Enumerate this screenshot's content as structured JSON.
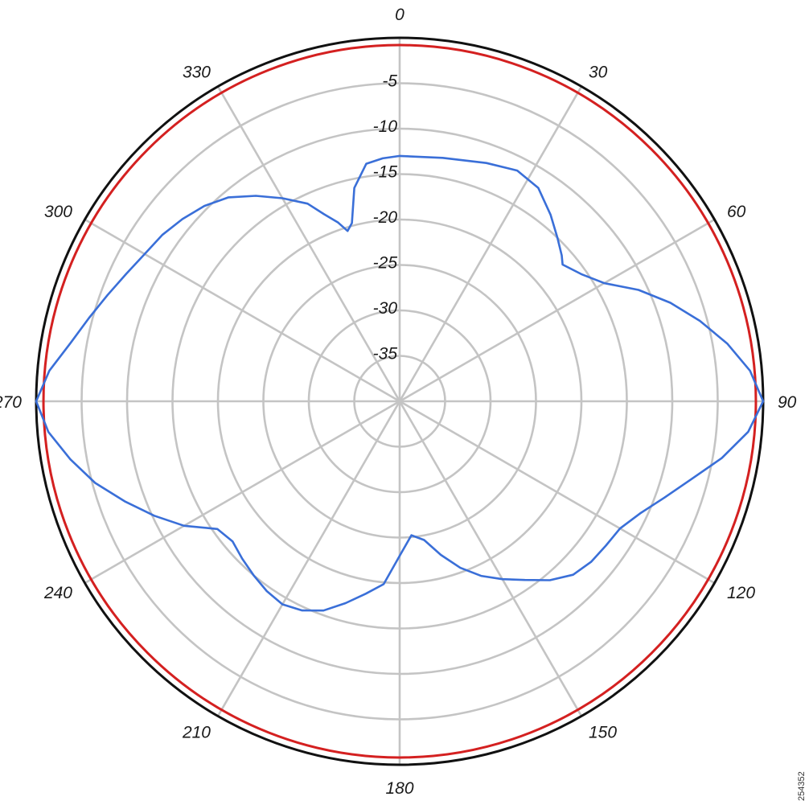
{
  "figure_id": "254352",
  "chart_data": {
    "type": "polar-line",
    "title": "",
    "angle_direction": "clockwise",
    "zero_at": "top",
    "angle_step": 30,
    "angle_labels": [
      "0",
      "30",
      "60",
      "90",
      "120",
      "150",
      "180",
      "210",
      "240",
      "270",
      "300",
      "330"
    ],
    "radial_range": [
      -40,
      0
    ],
    "radial_step": 5,
    "radial_labels": [
      "-5",
      "-10",
      "-15",
      "-20",
      "-25",
      "-30",
      "-35"
    ],
    "grid": true,
    "colors": {
      "outer_ring": "#111111",
      "grid": "#c4c4c4",
      "reference_series": "#d42020",
      "pattern_series": "#3a6fd8"
    },
    "series": [
      {
        "kind": "reference-circle",
        "level_db": -0.8
      },
      {
        "kind": "pattern",
        "points": [
          [
            0,
            -13.0
          ],
          [
            10,
            -12.8
          ],
          [
            20,
            -12.1
          ],
          [
            27,
            -11.5
          ],
          [
            33,
            -12.0
          ],
          [
            39,
            -13.6
          ],
          [
            44,
            -15.0
          ],
          [
            48,
            -16.0
          ],
          [
            50,
            -16.6
          ],
          [
            55,
            -15.6
          ],
          [
            60,
            -14.0
          ],
          [
            65,
            -11.0
          ],
          [
            70,
            -8.3
          ],
          [
            75,
            -5.8
          ],
          [
            80,
            -3.4
          ],
          [
            85,
            -1.3
          ],
          [
            90,
            0
          ],
          [
            95,
            -1.5
          ],
          [
            100,
            -4.0
          ],
          [
            105,
            -6.8
          ],
          [
            110,
            -9.0
          ],
          [
            115,
            -10.8
          ],
          [
            120,
            -12.0
          ],
          [
            125,
            -12.3
          ],
          [
            130,
            -12.5
          ],
          [
            135,
            -13.0
          ],
          [
            140,
            -14.3
          ],
          [
            145,
            -16.0
          ],
          [
            150,
            -17.4
          ],
          [
            155,
            -18.8
          ],
          [
            160,
            -20.5
          ],
          [
            165,
            -22.5
          ],
          [
            170,
            -24.5
          ],
          [
            175,
            -25.2
          ],
          [
            180,
            -23.0
          ],
          [
            185,
            -19.8
          ],
          [
            190,
            -18.5
          ],
          [
            195,
            -17.0
          ],
          [
            200,
            -15.5
          ],
          [
            205,
            -14.6
          ],
          [
            210,
            -14.2
          ],
          [
            215,
            -14.5
          ],
          [
            220,
            -15.0
          ],
          [
            225,
            -15.5
          ],
          [
            230,
            -16.0
          ],
          [
            235,
            -15.5
          ],
          [
            240,
            -12.6
          ],
          [
            245,
            -10.2
          ],
          [
            250,
            -7.8
          ],
          [
            255,
            -5.3
          ],
          [
            260,
            -3.2
          ],
          [
            265,
            -1.2
          ],
          [
            270,
            0
          ],
          [
            275,
            -1.3
          ],
          [
            280,
            -3.2
          ],
          [
            285,
            -4.6
          ],
          [
            290,
            -5.8
          ],
          [
            295,
            -6.8
          ],
          [
            300,
            -7.6
          ],
          [
            305,
            -8.1
          ],
          [
            310,
            -8.8
          ],
          [
            315,
            -9.6
          ],
          [
            320,
            -10.7
          ],
          [
            325,
            -12.4
          ],
          [
            330,
            -14.2
          ],
          [
            335,
            -16.0
          ],
          [
            338,
            -17.8
          ],
          [
            341,
            -19.2
          ],
          [
            343,
            -20.4
          ],
          [
            345,
            -19.7
          ],
          [
            348,
            -16.0
          ],
          [
            352,
            -13.6
          ],
          [
            356,
            -13.2
          ],
          [
            360,
            -13.0
          ]
        ]
      }
    ]
  }
}
